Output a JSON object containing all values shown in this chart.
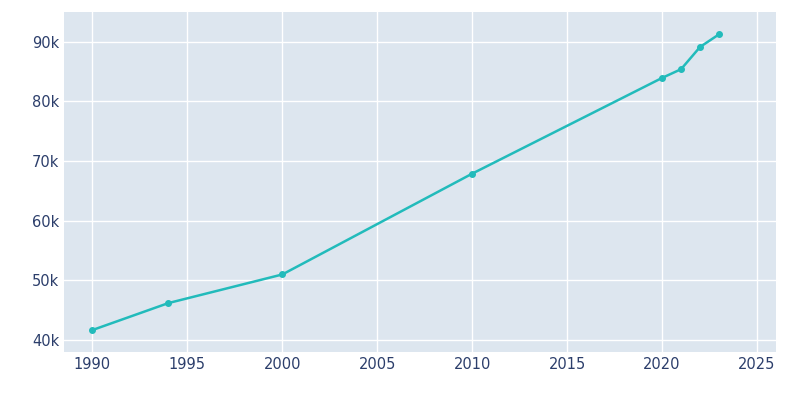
{
  "years": [
    1990,
    1994,
    2000,
    2010,
    2020,
    2021,
    2022,
    2023
  ],
  "population": [
    41685,
    46204,
    51000,
    67902,
    83948,
    85411,
    89137,
    91259
  ],
  "line_color": "#22BBBB",
  "marker_color": "#22BBBB",
  "plot_bg_color": "#DDE6EF",
  "fig_bg_color": "#FFFFFF",
  "grid_color": "#FFFFFF",
  "text_color": "#2C3E6B",
  "xlim": [
    1988.5,
    2026
  ],
  "ylim": [
    38000,
    95000
  ],
  "xticks": [
    1990,
    1995,
    2000,
    2005,
    2010,
    2015,
    2020,
    2025
  ],
  "yticks": [
    40000,
    50000,
    60000,
    70000,
    80000,
    90000
  ],
  "figsize": [
    8.0,
    4.0
  ],
  "dpi": 100
}
